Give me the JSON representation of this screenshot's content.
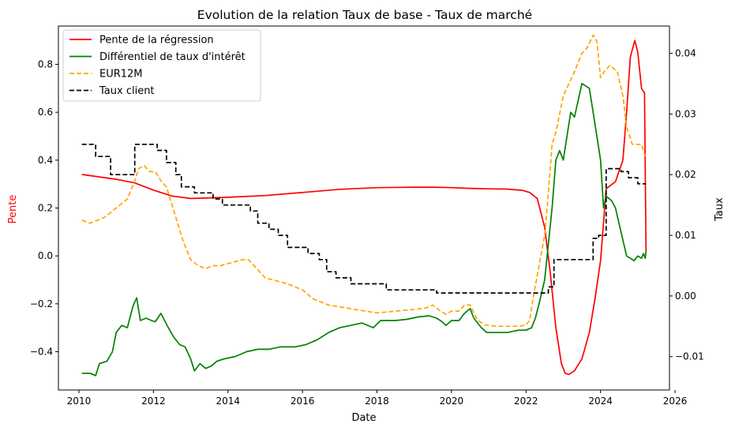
{
  "chart_data": {
    "type": "line",
    "title": "Evolution de la relation Taux de base - Taux de marché",
    "xlabel": "Date",
    "ylabel_left": "Pente",
    "ylabel_right": "Taux",
    "colors": {
      "ylabel_left": "#ff0000",
      "axes": "#000000",
      "background": "#ffffff"
    },
    "xlim": [
      2009.45,
      2025.85
    ],
    "ylim_left": [
      -0.56,
      0.96
    ],
    "ylim_right": [
      -0.0155,
      0.0445
    ],
    "x_ticks": [
      2010,
      2012,
      2014,
      2016,
      2018,
      2020,
      2022,
      2024,
      2026
    ],
    "y_ticks_left": [
      -0.4,
      -0.2,
      0.0,
      0.2,
      0.4,
      0.6,
      0.8
    ],
    "y_ticks_right": [
      -0.01,
      0.0,
      0.01,
      0.02,
      0.03,
      0.04
    ],
    "y_tick_labels_left": [
      "−0.4",
      "−0.2",
      "0.0",
      "0.2",
      "0.4",
      "0.6",
      "0.8"
    ],
    "y_tick_labels_right": [
      "−0.01",
      "0.00",
      "0.01",
      "0.02",
      "0.03",
      "0.04"
    ],
    "grid": false,
    "legend_placement": "upper-left",
    "series": [
      {
        "name": "Pente de la régression",
        "axis": "left",
        "color": "#ff0000",
        "dash": "solid",
        "x": [
          2010.08,
          2011.0,
          2011.5,
          2012.0,
          2012.5,
          2013.0,
          2014.0,
          2015.0,
          2016.0,
          2017.0,
          2018.0,
          2019.0,
          2019.5,
          2020.0,
          2020.5,
          2021.0,
          2021.5,
          2021.9,
          2022.1,
          2022.3,
          2022.5,
          2022.65,
          2022.8,
          2022.95,
          2023.05,
          2023.15,
          2023.3,
          2023.5,
          2023.7,
          2023.85,
          2024.0,
          2024.15,
          2024.4,
          2024.6,
          2024.7,
          2024.8,
          2024.92,
          2025.0,
          2025.1,
          2025.18,
          2025.22
        ],
        "values": [
          0.34,
          0.32,
          0.305,
          0.275,
          0.25,
          0.24,
          0.245,
          0.252,
          0.265,
          0.278,
          0.285,
          0.287,
          0.287,
          0.285,
          0.282,
          0.28,
          0.279,
          0.274,
          0.265,
          0.24,
          0.12,
          -0.07,
          -0.3,
          -0.45,
          -0.49,
          -0.495,
          -0.48,
          -0.43,
          -0.32,
          -0.18,
          -0.02,
          0.28,
          0.31,
          0.4,
          0.6,
          0.83,
          0.9,
          0.85,
          0.7,
          0.68,
          0.02
        ]
      },
      {
        "name": "Différentiel de taux d'intérêt",
        "axis": "left",
        "color": "#008000",
        "dash": "solid",
        "x": [
          2010.08,
          2010.3,
          2010.45,
          2010.55,
          2010.75,
          2010.9,
          2011.0,
          2011.15,
          2011.3,
          2011.45,
          2011.55,
          2011.65,
          2011.8,
          2011.95,
          2012.05,
          2012.2,
          2012.3,
          2012.4,
          2012.55,
          2012.7,
          2012.85,
          2013.0,
          2013.1,
          2013.25,
          2013.4,
          2013.55,
          2013.7,
          2013.9,
          2014.2,
          2014.5,
          2014.8,
          2015.1,
          2015.4,
          2015.8,
          2016.1,
          2016.4,
          2016.7,
          2017.0,
          2017.3,
          2017.6,
          2017.9,
          2018.1,
          2018.5,
          2018.8,
          2019.1,
          2019.4,
          2019.6,
          2019.75,
          2019.85,
          2020.0,
          2020.2,
          2020.35,
          2020.5,
          2020.6,
          2020.8,
          2020.95,
          2021.2,
          2021.5,
          2021.8,
          2022.0,
          2022.15,
          2022.25,
          2022.35,
          2022.5,
          2022.6,
          2022.7,
          2022.8,
          2022.9,
          2023.0,
          2023.1,
          2023.2,
          2023.3,
          2023.4,
          2023.5,
          2023.6,
          2023.7,
          2023.8,
          2023.9,
          2024.0,
          2024.08,
          2024.15,
          2024.3,
          2024.4,
          2024.55,
          2024.7,
          2024.9,
          2025.0,
          2025.1,
          2025.15,
          2025.2,
          2025.22
        ],
        "values": [
          -0.49,
          -0.49,
          -0.5,
          -0.45,
          -0.44,
          -0.4,
          -0.32,
          -0.29,
          -0.3,
          -0.21,
          -0.175,
          -0.27,
          -0.26,
          -0.27,
          -0.275,
          -0.24,
          -0.27,
          -0.3,
          -0.34,
          -0.37,
          -0.38,
          -0.43,
          -0.48,
          -0.45,
          -0.47,
          -0.46,
          -0.44,
          -0.43,
          -0.42,
          -0.4,
          -0.39,
          -0.39,
          -0.38,
          -0.38,
          -0.37,
          -0.35,
          -0.32,
          -0.3,
          -0.29,
          -0.28,
          -0.3,
          -0.27,
          -0.27,
          -0.265,
          -0.255,
          -0.25,
          -0.26,
          -0.275,
          -0.29,
          -0.27,
          -0.27,
          -0.24,
          -0.22,
          -0.26,
          -0.3,
          -0.32,
          -0.32,
          -0.32,
          -0.31,
          -0.31,
          -0.3,
          -0.26,
          -0.2,
          -0.1,
          0.05,
          0.2,
          0.4,
          0.44,
          0.4,
          0.5,
          0.6,
          0.58,
          0.65,
          0.72,
          0.71,
          0.7,
          0.6,
          0.5,
          0.4,
          0.2,
          0.25,
          0.23,
          0.2,
          0.1,
          0.0,
          -0.02,
          0.0,
          -0.01,
          0.01,
          -0.01,
          0.02
        ]
      },
      {
        "name": "EUR12M",
        "axis": "right",
        "color": "#ffa500",
        "dash": "dashed",
        "x": [
          2010.08,
          2010.3,
          2010.5,
          2010.7,
          2010.9,
          2011.1,
          2011.3,
          2011.5,
          2011.6,
          2011.75,
          2011.9,
          2012.05,
          2012.2,
          2012.35,
          2012.5,
          2012.65,
          2012.8,
          2013.0,
          2013.2,
          2013.4,
          2013.6,
          2013.8,
          2014.1,
          2014.4,
          2014.55,
          2014.7,
          2015.0,
          2015.3,
          2015.6,
          2016.0,
          2016.3,
          2016.7,
          2017.0,
          2017.5,
          2018.0,
          2018.5,
          2019.0,
          2019.3,
          2019.5,
          2019.7,
          2019.85,
          2020.0,
          2020.2,
          2020.35,
          2020.5,
          2020.7,
          2020.9,
          2021.2,
          2021.5,
          2021.8,
          2022.0,
          2022.1,
          2022.2,
          2022.35,
          2022.5,
          2022.6,
          2022.7,
          2022.8,
          2022.9,
          2023.0,
          2023.15,
          2023.3,
          2023.5,
          2023.65,
          2023.8,
          2023.9,
          2024.0,
          2024.1,
          2024.25,
          2024.45,
          2024.6,
          2024.7,
          2024.85,
          2025.0,
          2025.1,
          2025.2
        ],
        "values": [
          0.0125,
          0.012,
          0.0125,
          0.013,
          0.014,
          0.015,
          0.016,
          0.019,
          0.021,
          0.0215,
          0.0205,
          0.0205,
          0.019,
          0.018,
          0.015,
          0.012,
          0.009,
          0.006,
          0.005,
          0.0045,
          0.005,
          0.005,
          0.0055,
          0.006,
          0.006,
          0.005,
          0.003,
          0.0025,
          0.002,
          0.001,
          -0.0005,
          -0.0015,
          -0.0018,
          -0.0023,
          -0.0028,
          -0.0025,
          -0.0022,
          -0.002,
          -0.0015,
          -0.0025,
          -0.003,
          -0.0025,
          -0.0025,
          -0.0015,
          -0.0015,
          -0.004,
          -0.0048,
          -0.005,
          -0.005,
          -0.005,
          -0.0048,
          -0.004,
          0.0,
          0.005,
          0.01,
          0.017,
          0.025,
          0.027,
          0.03,
          0.033,
          0.035,
          0.037,
          0.04,
          0.041,
          0.043,
          0.042,
          0.036,
          0.037,
          0.038,
          0.037,
          0.033,
          0.028,
          0.025,
          0.025,
          0.025,
          0.023
        ]
      },
      {
        "name": "Taux client",
        "axis": "right",
        "color": "#000000",
        "dash": "dashed",
        "x": [
          2010.08,
          2010.45,
          2010.45,
          2010.85,
          2010.85,
          2011.5,
          2011.5,
          2012.1,
          2012.1,
          2012.35,
          2012.35,
          2012.6,
          2012.6,
          2012.75,
          2012.75,
          2013.1,
          2013.1,
          2013.6,
          2013.6,
          2013.85,
          2013.85,
          2014.6,
          2014.6,
          2014.8,
          2014.8,
          2015.1,
          2015.1,
          2015.35,
          2015.35,
          2015.6,
          2015.6,
          2016.15,
          2016.15,
          2016.45,
          2016.45,
          2016.65,
          2016.65,
          2016.9,
          2016.9,
          2017.3,
          2017.3,
          2018.25,
          2018.25,
          2019.6,
          2019.6,
          2021.55,
          2021.55,
          2022.6,
          2022.6,
          2022.75,
          2022.75,
          2022.85,
          2022.85,
          2023.8,
          2023.8,
          2023.95,
          2023.95,
          2024.15,
          2024.15,
          2024.55,
          2024.55,
          2024.75,
          2024.75,
          2025.0,
          2025.0,
          2025.22
        ],
        "values": [
          0.025,
          0.025,
          0.023,
          0.023,
          0.02,
          0.02,
          0.025,
          0.025,
          0.024,
          0.024,
          0.022,
          0.022,
          0.02,
          0.02,
          0.018,
          0.018,
          0.017,
          0.017,
          0.016,
          0.016,
          0.015,
          0.015,
          0.014,
          0.014,
          0.012,
          0.012,
          0.011,
          0.011,
          0.01,
          0.01,
          0.008,
          0.008,
          0.007,
          0.007,
          0.006,
          0.006,
          0.004,
          0.004,
          0.003,
          0.003,
          0.002,
          0.002,
          0.001,
          0.001,
          0.0005,
          0.0005,
          0.0005,
          0.0005,
          0.0015,
          0.0015,
          0.006,
          0.006,
          0.006,
          0.006,
          0.0095,
          0.0095,
          0.01,
          0.01,
          0.021,
          0.021,
          0.0205,
          0.0205,
          0.0195,
          0.0195,
          0.0185,
          0.0185
        ]
      }
    ]
  }
}
